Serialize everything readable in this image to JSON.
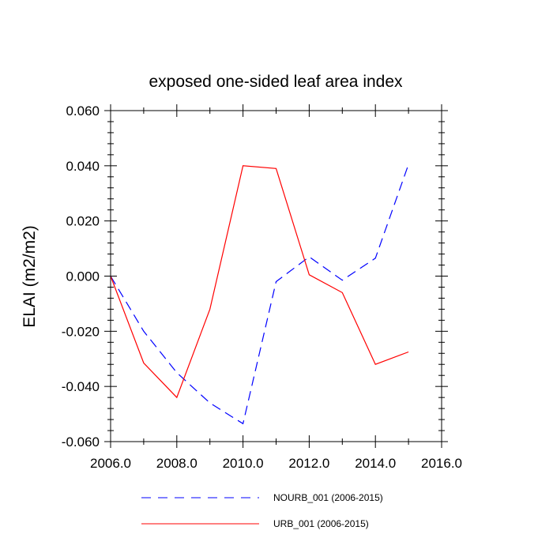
{
  "chart_data": {
    "type": "line",
    "title": "exposed one-sided leaf area index",
    "xlabel": "",
    "ylabel": "ELAI  (m2/m2)",
    "xlim": [
      2006,
      2016
    ],
    "ylim": [
      -0.06,
      0.06
    ],
    "x_ticks": [
      2006,
      2008,
      2010,
      2012,
      2014,
      2016
    ],
    "x_tick_labels": [
      "2006.0",
      "2008.0",
      "2010.0",
      "2012.0",
      "2014.0",
      "2016.0"
    ],
    "y_ticks": [
      -0.06,
      -0.04,
      -0.02,
      0.0,
      0.02,
      0.04,
      0.06
    ],
    "y_tick_labels": [
      "-0.060",
      "-0.040",
      "-0.020",
      "0.000",
      "0.020",
      "0.040",
      "0.060"
    ],
    "x": [
      2006,
      2007,
      2008,
      2009,
      2010,
      2011,
      2012,
      2013,
      2014,
      2015
    ],
    "grid": false,
    "legend_position": "bottom",
    "series": [
      {
        "name": "NOURB_001 (2006-2015)",
        "color": "#0000ff",
        "style": "dashed",
        "values": [
          0.0,
          -0.02,
          -0.035,
          -0.046,
          -0.0535,
          -0.002,
          0.007,
          -0.0015,
          0.0065,
          0.0405
        ]
      },
      {
        "name": "URB_001 (2006-2015)",
        "color": "#ff0000",
        "style": "solid",
        "values": [
          0.0,
          -0.0315,
          -0.044,
          -0.012,
          0.04,
          0.039,
          0.0005,
          -0.006,
          -0.032,
          -0.0275
        ]
      }
    ]
  }
}
